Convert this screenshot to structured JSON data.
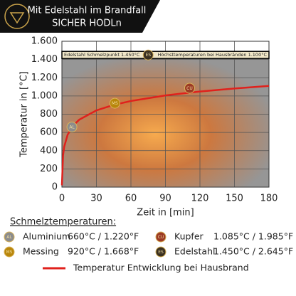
{
  "header": {
    "line1": "Mit Edelstahl im Brandfall",
    "line2": "SICHER HODLn"
  },
  "chart_data": {
    "type": "line",
    "y_label": "Temperatur in [°C]",
    "x_label": "Zeit in [min]",
    "xlim": [
      0,
      180
    ],
    "ylim": [
      0,
      1600
    ],
    "xticks": [
      0,
      30,
      60,
      90,
      120,
      150,
      180
    ],
    "yticks": [
      0,
      200,
      400,
      600,
      800,
      {
        "value": 1000,
        "label": "1.000"
      },
      {
        "value": 1200,
        "label": "1.200"
      },
      {
        "value": 1400,
        "label": "1.400"
      },
      {
        "value": 1600,
        "label": "1.600"
      }
    ],
    "grid": true,
    "x": [
      0,
      1,
      2,
      5,
      10,
      15,
      30,
      45,
      60,
      90,
      120,
      150,
      180
    ],
    "series": [
      {
        "name": "Temperatur Entwicklung bei Hausbrand",
        "color": "#e0211c",
        "values": [
          20,
          349,
          444,
          576,
          678,
          739,
          842,
          902,
          945,
          1006,
          1049,
          1082,
          1110
        ]
      }
    ],
    "reference_lines": [
      {
        "value": 1450,
        "label_left": "Edelstahl Schmelzpunkt 1.450°C",
        "label_right": "Höchsttemperaturen bei Hausbränden 1.100°C"
      }
    ],
    "markers": [
      {
        "label": "AL",
        "x": 8.7,
        "y": 660,
        "color": "#8c8c8c"
      },
      {
        "label": "MS",
        "x": 46,
        "y": 920,
        "color": "#b8860b"
      },
      {
        "label": "CU",
        "x": 111,
        "y": 1085,
        "color": "#9c3a24"
      },
      {
        "label": "ES",
        "x": 75,
        "y": 1450,
        "color": "#3a3020"
      }
    ]
  },
  "legend": {
    "title": "Schmelztemperaturen:",
    "items": [
      {
        "badge": "AL",
        "name": "Aluminium",
        "temps": "660°C / 1.220°F"
      },
      {
        "badge": "CU",
        "name": "Kupfer",
        "temps": "1.085°C / 1.985°F"
      },
      {
        "badge": "MS",
        "name": "Messing",
        "temps": "920°C / 1.668°F"
      },
      {
        "badge": "ES",
        "name": "Edelstahl",
        "temps": "1.450°C / 2.645°F"
      }
    ]
  }
}
